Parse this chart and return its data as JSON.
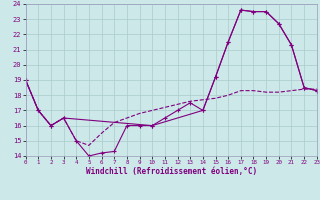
{
  "line1_x": [
    0,
    1,
    2,
    3,
    4,
    5,
    6,
    7,
    8,
    9,
    10,
    11,
    12,
    13,
    14,
    15,
    16,
    17,
    18,
    19,
    20,
    21,
    22,
    23
  ],
  "line1_y": [
    19,
    17,
    16,
    16.5,
    15.0,
    14.0,
    14.2,
    14.3,
    16.0,
    16.0,
    16.0,
    16.5,
    17.0,
    17.5,
    17.0,
    19.2,
    21.5,
    23.6,
    23.5,
    23.5,
    22.7,
    21.3,
    18.5,
    18.3
  ],
  "line2_x": [
    0,
    1,
    2,
    3,
    4,
    5,
    6,
    7,
    8,
    9,
    10,
    11,
    12,
    13,
    14,
    15,
    16,
    17,
    18,
    19,
    20,
    21,
    22,
    23
  ],
  "line2_y": [
    19,
    17,
    16,
    16.5,
    15.0,
    14.7,
    15.5,
    16.2,
    16.5,
    16.8,
    17.0,
    17.2,
    17.4,
    17.6,
    17.7,
    17.8,
    18.0,
    18.3,
    18.3,
    18.2,
    18.2,
    18.3,
    18.4,
    18.4
  ],
  "line3_x": [
    0,
    1,
    2,
    3,
    10,
    14,
    15,
    16,
    17,
    18,
    19,
    20,
    21,
    22,
    23
  ],
  "line3_y": [
    19,
    17,
    16,
    16.5,
    16.0,
    17.0,
    19.2,
    21.5,
    23.6,
    23.5,
    23.5,
    22.7,
    21.3,
    18.5,
    18.3
  ],
  "line_color": "#800080",
  "bg_color": "#cce8e8",
  "grid_color": "#aacccc",
  "xlabel": "Windchill (Refroidissement éolien,°C)",
  "xlim": [
    0,
    23
  ],
  "ylim": [
    14,
    24
  ],
  "yticks": [
    14,
    15,
    16,
    17,
    18,
    19,
    20,
    21,
    22,
    23,
    24
  ],
  "xticks": [
    0,
    1,
    2,
    3,
    4,
    5,
    6,
    7,
    8,
    9,
    10,
    11,
    12,
    13,
    14,
    15,
    16,
    17,
    18,
    19,
    20,
    21,
    22,
    23
  ]
}
